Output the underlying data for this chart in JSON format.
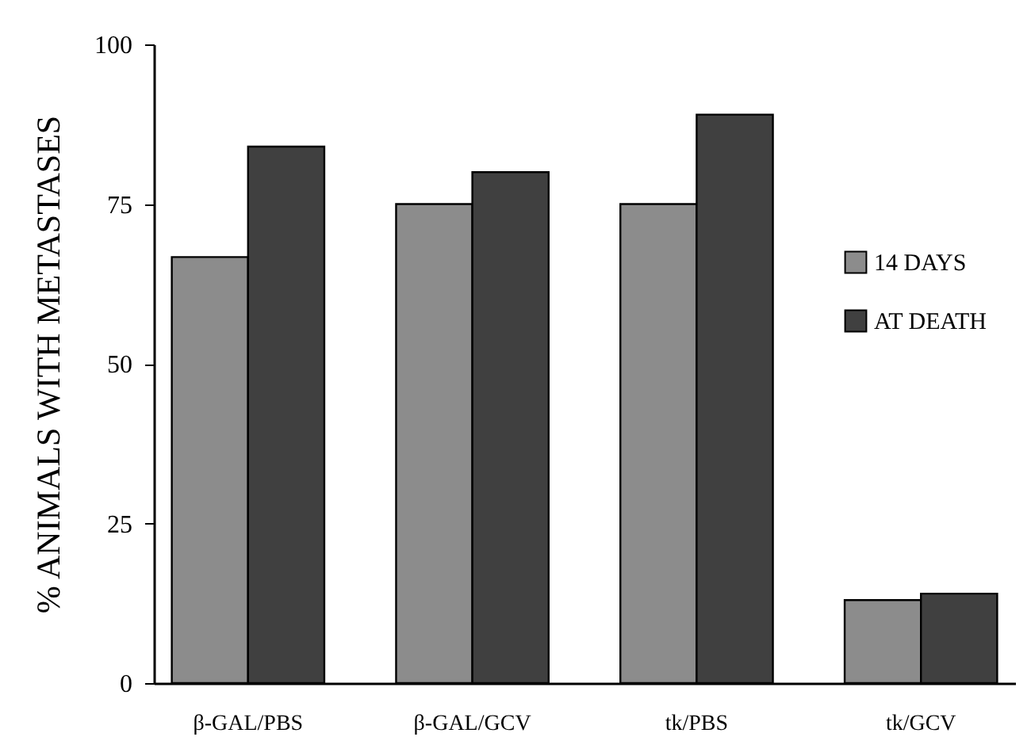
{
  "chart_data": {
    "type": "bar",
    "ylabel": "% ANIMALS WITH METASTASES",
    "categories": [
      "β-GAL/PBS",
      "β-GAL/GCV",
      "tk/PBS",
      "tk/GCV"
    ],
    "series": [
      {
        "name": "14 DAYS",
        "color": "#8c8c8c",
        "values": [
          66.7,
          75,
          75,
          13
        ]
      },
      {
        "name": "AT DEATH",
        "color": "#404040",
        "values": [
          84,
          80,
          89,
          14
        ]
      }
    ],
    "ylim": [
      0,
      100
    ],
    "yticks": [
      0,
      25,
      50,
      75,
      100
    ],
    "grid": false,
    "legend": "right"
  }
}
